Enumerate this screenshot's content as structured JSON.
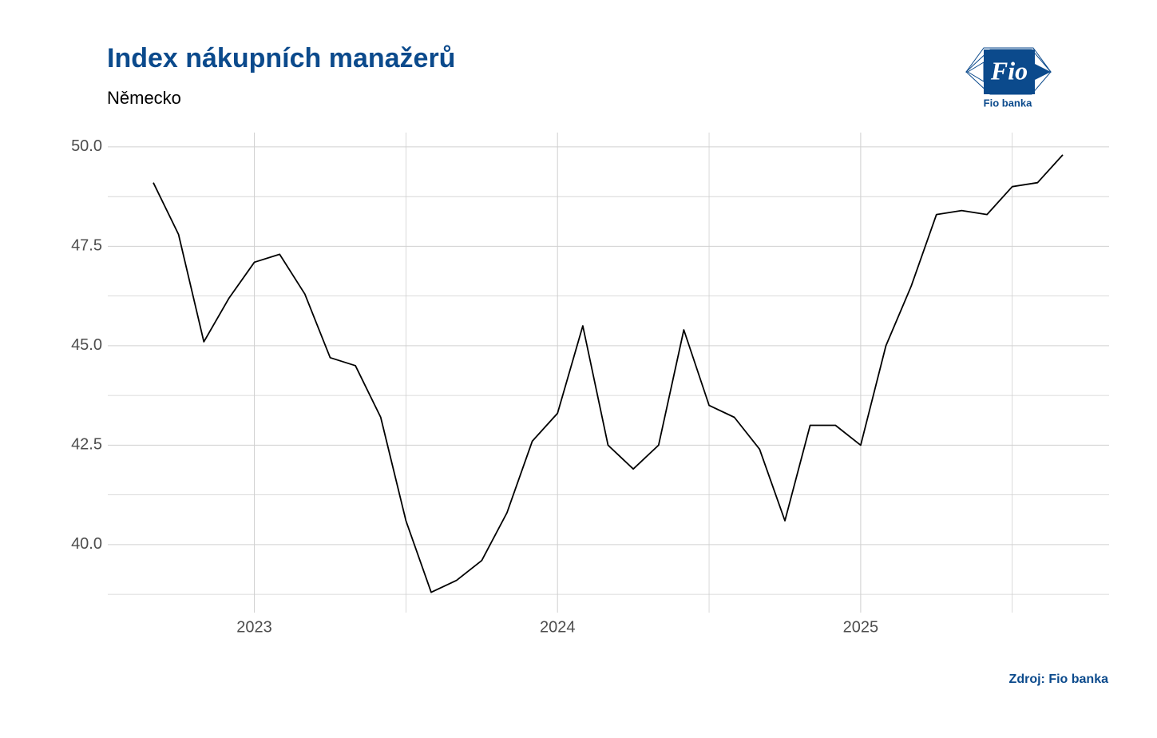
{
  "chart_data": {
    "type": "line",
    "title": "Index nákupních manažerů",
    "subtitle": "Německo",
    "source": "Zdroj: Fio banka",
    "logo": {
      "mark": "Fio",
      "name": "Fio banka"
    },
    "categories": [
      null,
      null,
      null,
      null,
      "2023",
      null,
      null,
      null,
      null,
      null,
      null,
      null,
      null,
      null,
      null,
      null,
      "2024",
      null,
      null,
      null,
      null,
      null,
      null,
      null,
      null,
      null,
      null,
      null,
      "2025",
      null,
      null,
      null,
      null,
      null,
      null,
      null,
      null
    ],
    "values": [
      49.1,
      47.8,
      45.1,
      46.2,
      47.1,
      47.3,
      46.3,
      44.7,
      44.5,
      43.2,
      40.6,
      38.8,
      39.1,
      39.6,
      40.8,
      42.6,
      43.3,
      45.5,
      42.5,
      41.9,
      42.5,
      45.4,
      43.5,
      43.2,
      42.4,
      40.6,
      43.0,
      43.0,
      42.5,
      45.0,
      46.5,
      48.3,
      48.4,
      48.3,
      49.0,
      49.1,
      49.8
    ],
    "color": "#000000",
    "ylim": [
      38.29,
      50.36
    ],
    "yticks": [
      {
        "value": 40,
        "label": "40.0"
      },
      42.5,
      {
        "value": 45,
        "label": "45.0"
      },
      47.5,
      {
        "value": 50,
        "label": "50.0"
      }
    ],
    "grid": true
  }
}
